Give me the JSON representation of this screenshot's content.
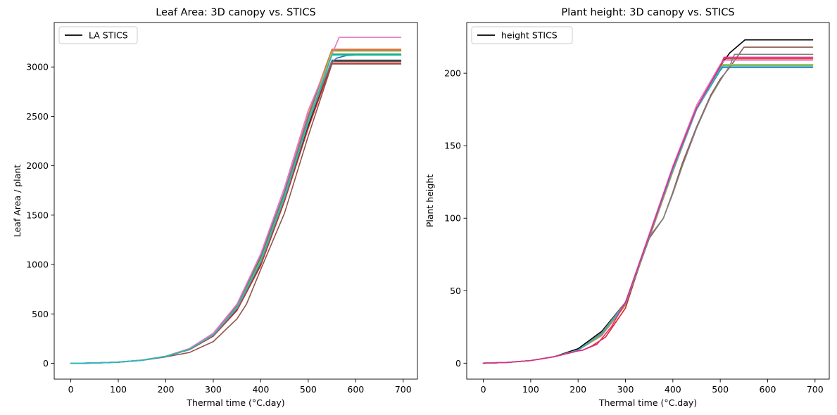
{
  "chart_data": [
    {
      "type": "line",
      "title": "Leaf Area: 3D canopy vs. STICS",
      "xlabel": "Thermal time (°C.day)",
      "ylabel": "Leaf Area / plant",
      "xlim": [
        -35,
        730
      ],
      "ylim": [
        -160,
        3450
      ],
      "xticks": [
        0,
        100,
        200,
        300,
        400,
        500,
        600,
        700
      ],
      "yticks": [
        0,
        500,
        1000,
        1500,
        2000,
        2500,
        3000
      ],
      "grid": false,
      "legend": {
        "placement": "top-left",
        "entries": [
          {
            "label": "LA STICS",
            "color": "#000000"
          }
        ]
      },
      "series": [
        {
          "name": "LA STICS",
          "color": "#000000",
          "x": [
            0,
            50,
            100,
            150,
            200,
            250,
            300,
            350,
            400,
            450,
            500,
            550,
            600,
            650,
            695
          ],
          "y": [
            0,
            3,
            12,
            32,
            70,
            140,
            280,
            540,
            1000,
            1650,
            2400,
            3060,
            3060,
            3060,
            3060
          ]
        },
        {
          "color": "#1f77b4",
          "x": [
            0,
            50,
            100,
            150,
            200,
            250,
            300,
            350,
            400,
            450,
            500,
            548,
            560,
            580,
            600,
            650,
            695
          ],
          "y": [
            0,
            3,
            12,
            32,
            70,
            145,
            290,
            560,
            1040,
            1690,
            2460,
            3040,
            3090,
            3115,
            3120,
            3120,
            3120
          ]
        },
        {
          "color": "#ff7f0e",
          "x": [
            0,
            50,
            100,
            150,
            200,
            250,
            300,
            330,
            350,
            400,
            450,
            500,
            550,
            600,
            650,
            695
          ],
          "y": [
            0,
            3,
            12,
            32,
            72,
            150,
            300,
            460,
            600,
            1060,
            1740,
            2520,
            3180,
            3180,
            3180,
            3180
          ]
        },
        {
          "color": "#2ca02c",
          "x": [
            0,
            50,
            100,
            150,
            200,
            250,
            300,
            350,
            400,
            450,
            500,
            550,
            600,
            650,
            695
          ],
          "y": [
            0,
            3,
            12,
            32,
            70,
            145,
            292,
            580,
            1070,
            1720,
            2490,
            3130,
            3130,
            3130,
            3130
          ]
        },
        {
          "color": "#d62728",
          "x": [
            0,
            50,
            100,
            150,
            200,
            250,
            300,
            350,
            400,
            450,
            500,
            550,
            600,
            650,
            695
          ],
          "y": [
            0,
            3,
            12,
            32,
            70,
            138,
            275,
            535,
            990,
            1640,
            2380,
            3040,
            3040,
            3040,
            3040
          ]
        },
        {
          "color": "#9467bd",
          "x": [
            0,
            50,
            100,
            150,
            200,
            250,
            300,
            350,
            400,
            450,
            500,
            550,
            600,
            650,
            695
          ],
          "y": [
            0,
            3,
            12,
            32,
            71,
            146,
            295,
            590,
            1090,
            1740,
            2500,
            3170,
            3170,
            3170,
            3170
          ]
        },
        {
          "color": "#8c564b",
          "x": [
            0,
            50,
            100,
            150,
            200,
            250,
            300,
            350,
            370,
            400,
            450,
            500,
            550,
            600,
            650,
            695
          ],
          "y": [
            0,
            2,
            10,
            30,
            65,
            110,
            220,
            450,
            600,
            950,
            1520,
            2300,
            3030,
            3030,
            3030,
            3030
          ]
        },
        {
          "color": "#e377c2",
          "x": [
            0,
            50,
            100,
            150,
            200,
            250,
            300,
            350,
            400,
            450,
            500,
            565,
            600,
            650,
            695
          ],
          "y": [
            0,
            3,
            12,
            33,
            72,
            150,
            305,
            600,
            1110,
            1780,
            2560,
            3300,
            3300,
            3300,
            3300
          ]
        },
        {
          "color": "#7f7f7f",
          "x": [
            0,
            50,
            100,
            150,
            200,
            250,
            300,
            350,
            400,
            450,
            500,
            550,
            600,
            650,
            695
          ],
          "y": [
            0,
            3,
            12,
            32,
            70,
            142,
            285,
            555,
            1020,
            1670,
            2430,
            3070,
            3070,
            3070,
            3070
          ]
        },
        {
          "color": "#bcbd22",
          "x": [
            0,
            50,
            100,
            150,
            200,
            250,
            300,
            350,
            400,
            450,
            500,
            550,
            600,
            650,
            695
          ],
          "y": [
            0,
            3,
            12,
            32,
            70,
            144,
            288,
            565,
            1040,
            1690,
            2450,
            3160,
            3160,
            3160,
            3160
          ]
        },
        {
          "color": "#17becf",
          "x": [
            0,
            50,
            100,
            150,
            200,
            250,
            300,
            350,
            400,
            450,
            500,
            550,
            600,
            650,
            695
          ],
          "y": [
            0,
            3,
            12,
            32,
            70,
            143,
            287,
            560,
            1030,
            1680,
            2440,
            3120,
            3120,
            3120,
            3120
          ]
        }
      ]
    },
    {
      "type": "line",
      "title": "Plant height: 3D canopy vs. STICS",
      "xlabel": "Thermal time (°C.day)",
      "ylabel": "Plant height",
      "xlim": [
        -35,
        730
      ],
      "ylim": [
        -11,
        235
      ],
      "xticks": [
        0,
        100,
        200,
        300,
        400,
        500,
        600,
        700
      ],
      "yticks": [
        0,
        50,
        100,
        150,
        200
      ],
      "grid": false,
      "legend": {
        "placement": "top-left",
        "entries": [
          {
            "label": "height STICS",
            "color": "#000000"
          }
        ]
      },
      "series": [
        {
          "name": "height STICS",
          "color": "#000000",
          "x": [
            0,
            50,
            100,
            150,
            200,
            250,
            300,
            350,
            400,
            450,
            500,
            520,
            552,
            600,
            650,
            695
          ],
          "y": [
            0,
            0.5,
            1.8,
            4.5,
            10,
            22,
            42,
            86,
            134,
            176,
            205,
            214,
            223,
            223,
            223,
            223
          ]
        },
        {
          "color": "#1f77b4",
          "x": [
            0,
            50,
            100,
            150,
            200,
            250,
            300,
            350,
            400,
            450,
            500,
            505,
            600,
            650,
            695
          ],
          "y": [
            0,
            0.5,
            1.8,
            4.5,
            9,
            20,
            41,
            87,
            133,
            175,
            202,
            204,
            204,
            204,
            204
          ]
        },
        {
          "color": "#ff7f0e",
          "x": [
            0,
            50,
            100,
            150,
            200,
            250,
            300,
            350,
            400,
            450,
            500,
            505,
            600,
            650,
            695
          ],
          "y": [
            0,
            0.5,
            1.8,
            4.5,
            9,
            19,
            40,
            86,
            132,
            175,
            203,
            205,
            205,
            205,
            205
          ]
        },
        {
          "color": "#2ca02c",
          "x": [
            0,
            50,
            100,
            150,
            200,
            250,
            300,
            350,
            400,
            450,
            500,
            507,
            600,
            650,
            695
          ],
          "y": [
            0,
            0.5,
            1.8,
            4.5,
            9,
            20,
            41,
            87,
            133,
            175,
            204,
            206,
            206,
            206,
            206
          ]
        },
        {
          "color": "#d62728",
          "x": [
            0,
            50,
            100,
            150,
            200,
            210,
            230,
            258,
            300,
            350,
            400,
            450,
            500,
            508,
            600,
            650,
            695
          ],
          "y": [
            0,
            0.5,
            1.8,
            4.5,
            8.5,
            9,
            12,
            18,
            38,
            88,
            134,
            176,
            205,
            210,
            210,
            210,
            210
          ]
        },
        {
          "color": "#9467bd",
          "x": [
            0,
            50,
            100,
            150,
            200,
            250,
            300,
            350,
            400,
            450,
            500,
            505,
            600,
            650,
            695
          ],
          "y": [
            0,
            0.5,
            1.8,
            4.5,
            9,
            20,
            41,
            87,
            133,
            175,
            203,
            205,
            205,
            205,
            205
          ]
        },
        {
          "color": "#8c564b",
          "x": [
            0,
            50,
            100,
            150,
            200,
            250,
            300,
            350,
            380,
            400,
            420,
            450,
            480,
            500,
            520,
            550,
            600,
            650,
            695
          ],
          "y": [
            0,
            0.5,
            1.8,
            4.5,
            9,
            20,
            41,
            86,
            100,
            118,
            138,
            163,
            185,
            196,
            204,
            218,
            218,
            218,
            218
          ]
        },
        {
          "color": "#e377c2",
          "x": [
            0,
            50,
            100,
            150,
            200,
            250,
            300,
            350,
            400,
            450,
            500,
            510,
            600,
            650,
            695
          ],
          "y": [
            0,
            0.5,
            1.8,
            4.5,
            9,
            20,
            42,
            89,
            136,
            178,
            206,
            209,
            209,
            209,
            209
          ]
        },
        {
          "color": "#7f7f7f",
          "x": [
            0,
            50,
            100,
            150,
            200,
            250,
            300,
            350,
            380,
            400,
            420,
            450,
            480,
            500,
            520,
            530,
            600,
            650,
            695
          ],
          "y": [
            0,
            0.5,
            1.8,
            4.5,
            9,
            21,
            42,
            87,
            100,
            117,
            136,
            162,
            184,
            195,
            205,
            213,
            213,
            213,
            213
          ]
        },
        {
          "color": "#bcbd22",
          "x": [
            0,
            50,
            100,
            150,
            200,
            250,
            300,
            350,
            400,
            450,
            500,
            505,
            600,
            650,
            695
          ],
          "y": [
            0,
            0.5,
            1.8,
            4.5,
            9,
            20,
            41,
            87,
            133,
            175,
            203,
            206,
            206,
            206,
            206
          ]
        },
        {
          "color": "#17becf",
          "x": [
            0,
            50,
            100,
            150,
            200,
            250,
            300,
            350,
            400,
            450,
            500,
            505,
            600,
            650,
            695
          ],
          "y": [
            0,
            0.5,
            1.8,
            4.5,
            9,
            20,
            41,
            87,
            133,
            175,
            203,
            205,
            205,
            205,
            205
          ]
        },
        {
          "color": "#e7298a",
          "x": [
            0,
            50,
            100,
            150,
            200,
            210,
            240,
            270,
            300,
            350,
            400,
            450,
            500,
            508,
            600,
            650,
            695
          ],
          "y": [
            0,
            0.5,
            1.8,
            4.5,
            8.5,
            9,
            13,
            25,
            42,
            88,
            135,
            176,
            205,
            211,
            211,
            211,
            211
          ]
        }
      ]
    }
  ]
}
